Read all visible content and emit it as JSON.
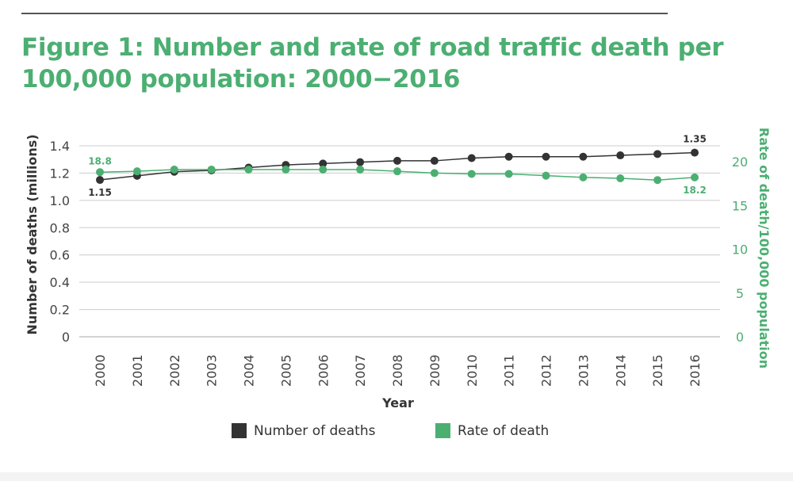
{
  "title": "Figure 1: Number and rate of road traffic death per 100,000 population: 2000−2016",
  "chart_data": {
    "type": "line",
    "x": [
      "2000",
      "2001",
      "2002",
      "2003",
      "2004",
      "2005",
      "2006",
      "2007",
      "2008",
      "2009",
      "2010",
      "2011",
      "2012",
      "2013",
      "2014",
      "2015",
      "2016"
    ],
    "xlabel": "Year",
    "ylabel": "Number of deaths (millions)",
    "y2label": "Rate of death/100,000 population",
    "ylim": [
      0,
      1.4
    ],
    "y2lim": [
      0,
      20
    ],
    "yticks": [
      "0",
      "0.2",
      "0.4",
      "0.6",
      "0.8",
      "1.0",
      "1.2",
      "1.4"
    ],
    "y2ticks": [
      "0",
      "5",
      "10",
      "15",
      "20"
    ],
    "grid": true,
    "legend_position": "bottom",
    "series": [
      {
        "name": "Number of deaths",
        "axis": "left",
        "color": "#333333",
        "values": [
          1.15,
          1.18,
          1.21,
          1.22,
          1.24,
          1.26,
          1.27,
          1.28,
          1.29,
          1.29,
          1.31,
          1.32,
          1.32,
          1.32,
          1.33,
          1.34,
          1.35
        ],
        "labels": [
          {
            "index": 0,
            "text": "1.15"
          },
          {
            "index": 16,
            "text": "1.35"
          }
        ]
      },
      {
        "name": "Rate of death",
        "axis": "right",
        "color": "#4caf72",
        "values": [
          18.8,
          18.9,
          19.1,
          19.1,
          19.1,
          19.1,
          19.1,
          19.1,
          18.9,
          18.7,
          18.6,
          18.6,
          18.4,
          18.2,
          18.1,
          17.9,
          18.2
        ],
        "labels": [
          {
            "index": 0,
            "text": "18.8"
          },
          {
            "index": 16,
            "text": "18.2"
          }
        ]
      }
    ]
  }
}
